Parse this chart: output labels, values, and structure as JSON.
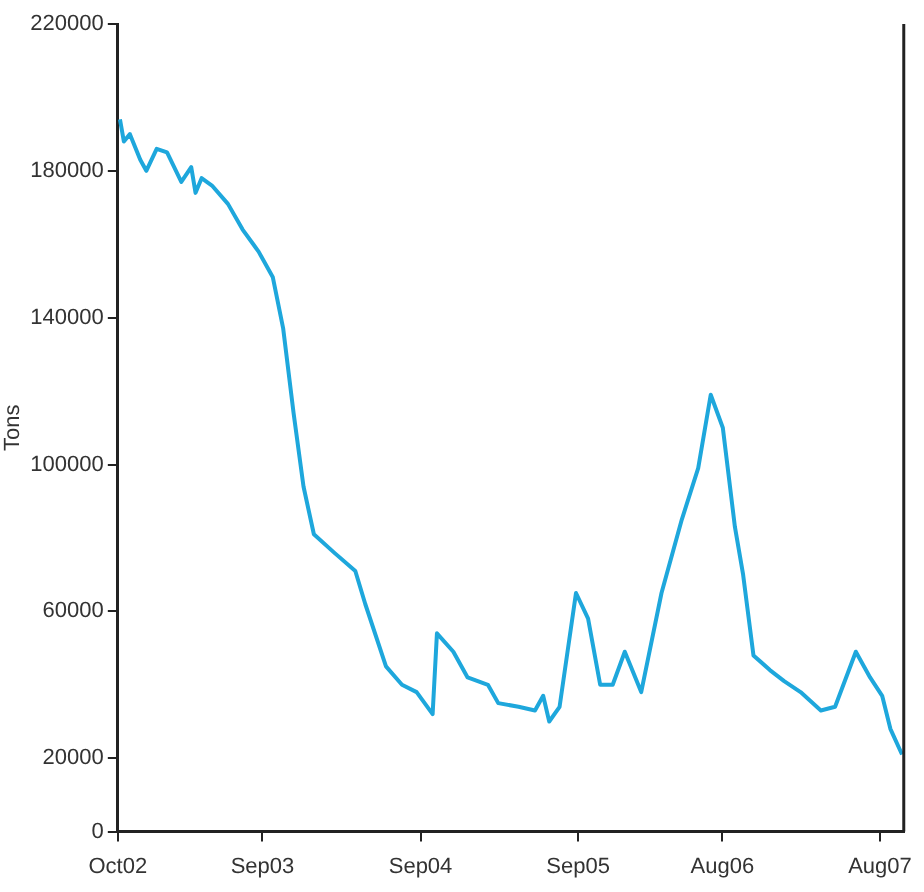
{
  "chart_data": {
    "type": "line",
    "ylabel": "Tons",
    "x": [
      "2002-10-06",
      "2002-10-15",
      "2002-10-29",
      "2002-11-22",
      "2002-12-06",
      "2002-12-30",
      "2003-01-23",
      "2003-02-25",
      "2003-03-20",
      "2003-03-30",
      "2003-04-13",
      "2003-05-07",
      "2003-06-13",
      "2003-07-17",
      "2003-08-23",
      "2003-09-25",
      "2003-10-19",
      "2003-11-12",
      "2003-12-05",
      "2003-12-29",
      "2004-02-14",
      "2004-04-03",
      "2004-04-26",
      "2004-06-13",
      "2004-07-20",
      "2004-08-23",
      "2004-09-29",
      "2004-10-09",
      "2004-11-16",
      "2004-12-19",
      "2005-02-04",
      "2005-02-28",
      "2005-04-16",
      "2005-05-24",
      "2005-06-12",
      "2005-06-26",
      "2005-07-20",
      "2005-08-27",
      "2005-09-24",
      "2005-10-22",
      "2005-11-20",
      "2005-12-18",
      "2006-01-25",
      "2006-03-13",
      "2006-04-29",
      "2006-06-06",
      "2006-07-05",
      "2006-08-02",
      "2006-08-30",
      "2006-09-18",
      "2006-10-12",
      "2006-11-19",
      "2006-12-22",
      "2007-01-29",
      "2007-03-17",
      "2007-04-19",
      "2007-06-06",
      "2007-07-09",
      "2007-08-06",
      "2007-08-25",
      "2007-09-21"
    ],
    "series": [
      {
        "color": "#1ea7dc",
        "values": [
          194000,
          188000,
          190000,
          183000,
          180000,
          186000,
          185000,
          177000,
          181000,
          174000,
          178000,
          176000,
          171000,
          164000,
          158000,
          151000,
          137000,
          114000,
          94000,
          81000,
          76000,
          71000,
          62000,
          45000,
          40000,
          38000,
          32000,
          54000,
          49000,
          42000,
          40000,
          35000,
          34000,
          33000,
          37000,
          30000,
          34000,
          65000,
          58000,
          40000,
          40000,
          49000,
          38000,
          65000,
          85000,
          99000,
          119000,
          110000,
          83000,
          70000,
          48000,
          44000,
          41000,
          38000,
          33000,
          34000,
          49000,
          42000,
          37000,
          28000,
          21000
        ]
      }
    ],
    "xlim": [
      "2002-10-01",
      "2007-09-25"
    ],
    "xticks": [
      {
        "value": "2002-10-01",
        "label": "Oct02"
      },
      {
        "value": "2003-09-01",
        "label": "Sep03"
      },
      {
        "value": "2004-09-01",
        "label": "Sep04"
      },
      {
        "value": "2005-09-01",
        "label": "Sep05"
      },
      {
        "value": "2006-08-01",
        "label": "Aug06"
      },
      {
        "value": "2007-08-01",
        "label": "Aug07"
      }
    ],
    "ylim": [
      0,
      220000
    ],
    "yticks": [
      0,
      20000,
      60000,
      100000,
      140000,
      180000,
      220000
    ],
    "grid": false,
    "legend": false,
    "marker": "none",
    "line_style": "solid"
  }
}
